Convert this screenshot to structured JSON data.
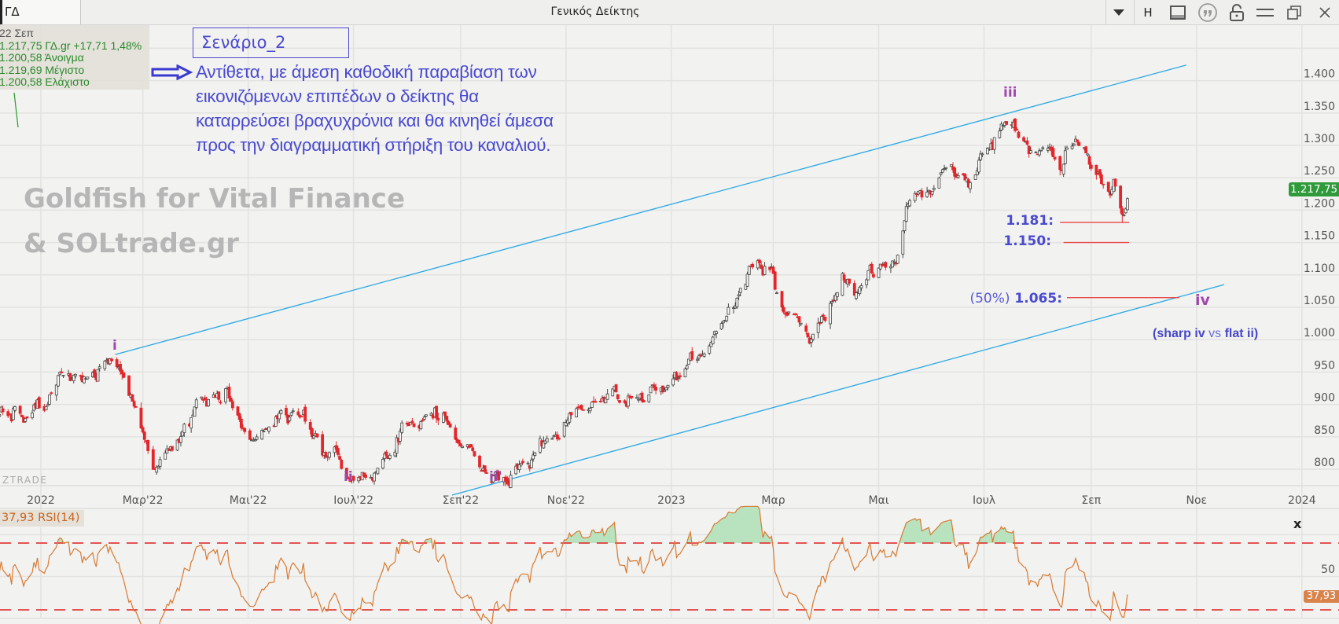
{
  "window": {
    "tab_label": "ΓΔ",
    "title": "Γενικός Δείκτης",
    "buttons": {
      "dropdown": "dropdown",
      "h_label": "H"
    }
  },
  "info": {
    "date": "22 Σεπ",
    "last": "1.217,75 ΓΔ.gr +17,71 1,48%",
    "open": "1.200,58 Άνοιγμα",
    "high": "1.219,69 Μέγιστο",
    "low": "1.200,58 Ελάχιστο"
  },
  "annotation": {
    "scenario_title": "Σενάριο_2",
    "lines": [
      "Αντίθετα, με άμεση καθοδική παραβίαση των",
      "εικονιζόμενων επιπέδων ο δείκτης θα",
      "καταρρεύσει βραχυχρόνια και θα κινηθεί άμεσα",
      "προς την διαγραμματική στήριξη του καναλιού."
    ],
    "levels": {
      "l1": "1.181:",
      "l2": "1.150:",
      "l3_prefix": "(50%)",
      "l3": "1.065:"
    },
    "waves": {
      "i": "i",
      "ii": "ii",
      "ii_alt": "ii'",
      "iii": "iii",
      "iv": "iv"
    },
    "note": {
      "open": "(sharp ",
      "iv": "iv",
      "vs": " vs ",
      "flat": "flat ii",
      "close": ")"
    }
  },
  "watermark": {
    "line1": "Goldfish for Vital Finance",
    "line2": "& SOLtrade.gr",
    "brand": "ZTRADE"
  },
  "price_tag": "1.217,75",
  "rsi_panel": {
    "header": "37,93 RSI(14)",
    "value_tag": "37,93",
    "mid_label": "50",
    "close_label": "x"
  },
  "colors": {
    "up_fill": "#f6f6f4",
    "up_stroke": "#444444",
    "down": "#e3262b",
    "channel": "#29a8e8",
    "level": "#e84646",
    "rsi": "#d87a32",
    "rsi_fill": "#b9e2bf",
    "rsi_band": "#e02020"
  },
  "chart_data": {
    "type": "candlestick",
    "title": "Γενικός Δείκτης",
    "x_origin_date": "2022-01-01",
    "x_ticks": [
      {
        "day": 0,
        "label": "2022"
      },
      {
        "day": 59,
        "label": "Μαρ'22"
      },
      {
        "day": 120,
        "label": "Μαι'22"
      },
      {
        "day": 181,
        "label": "Ιουλ'22"
      },
      {
        "day": 243,
        "label": "Σεπ'22"
      },
      {
        "day": 304,
        "label": "Νοε'22"
      },
      {
        "day": 365,
        "label": "2023"
      },
      {
        "day": 424,
        "label": "Μαρ"
      },
      {
        "day": 485,
        "label": "Μαι"
      },
      {
        "day": 546,
        "label": "Ιουλ"
      },
      {
        "day": 608,
        "label": "Σεπ"
      },
      {
        "day": 669,
        "label": "Νοε"
      },
      {
        "day": 730,
        "label": "2024"
      }
    ],
    "x_range_days": [
      -24,
      744
    ],
    "y_ticks": [
      {
        "value": 1400,
        "label": "1.400"
      },
      {
        "value": 1350,
        "label": "1.350"
      },
      {
        "value": 1300,
        "label": "1.300"
      },
      {
        "value": 1250,
        "label": "1.250"
      },
      {
        "value": 1200,
        "label": "1.200"
      },
      {
        "value": 1150,
        "label": "1.150"
      },
      {
        "value": 1100,
        "label": "1.100"
      },
      {
        "value": 1050,
        "label": "1.050"
      },
      {
        "value": 1000,
        "label": "1.000"
      },
      {
        "value": 950,
        "label": "950"
      },
      {
        "value": 900,
        "label": "900"
      },
      {
        "value": 850,
        "label": "850"
      },
      {
        "value": 800,
        "label": "800"
      }
    ],
    "y_range": [
      775,
      1470
    ],
    "close_path": [
      [
        -24,
        880
      ],
      [
        0,
        886
      ],
      [
        11,
        939
      ],
      [
        26,
        932
      ],
      [
        43,
        968
      ],
      [
        50,
        939
      ],
      [
        58,
        866
      ],
      [
        65,
        787
      ],
      [
        75,
        840
      ],
      [
        90,
        893
      ],
      [
        107,
        932
      ],
      [
        120,
        853
      ],
      [
        134,
        860
      ],
      [
        147,
        886
      ],
      [
        154,
        880
      ],
      [
        162,
        813
      ],
      [
        172,
        826
      ],
      [
        179,
        774
      ],
      [
        194,
        800
      ],
      [
        209,
        860
      ],
      [
        226,
        886
      ],
      [
        233,
        880
      ],
      [
        241,
        840
      ],
      [
        253,
        820
      ],
      [
        265,
        780
      ],
      [
        278,
        807
      ],
      [
        293,
        853
      ],
      [
        312,
        893
      ],
      [
        332,
        906
      ],
      [
        347,
        913
      ],
      [
        362,
        919
      ],
      [
        372,
        959
      ],
      [
        387,
        999
      ],
      [
        401,
        1065
      ],
      [
        411,
        1105
      ],
      [
        421,
        1125
      ],
      [
        429,
        1058
      ],
      [
        441,
        1012
      ],
      [
        448,
        1005
      ],
      [
        458,
        1058
      ],
      [
        466,
        1098
      ],
      [
        476,
        1078
      ],
      [
        485,
        1118
      ],
      [
        495,
        1124
      ],
      [
        500,
        1204
      ],
      [
        510,
        1230
      ],
      [
        520,
        1257
      ],
      [
        532,
        1257
      ],
      [
        537,
        1237
      ],
      [
        545,
        1277
      ],
      [
        555,
        1323
      ],
      [
        565,
        1340
      ],
      [
        572,
        1303
      ],
      [
        582,
        1303
      ],
      [
        589,
        1264
      ],
      [
        597,
        1297
      ],
      [
        603,
        1310
      ],
      [
        609,
        1270
      ],
      [
        616,
        1237
      ],
      [
        621,
        1244
      ],
      [
        626,
        1190
      ],
      [
        628,
        1200
      ]
    ],
    "last_candle": {
      "day": 629,
      "open": 1200.58,
      "high": 1219.69,
      "low": 1200.58,
      "close": 1217.75,
      "change": 17.71,
      "change_pct": 1.48
    },
    "trendlines": [
      {
        "name": "channel-upper",
        "from": [
          43,
          977
        ],
        "to": [
          663,
          1424
        ]
      },
      {
        "name": "channel-lower",
        "from": [
          238,
          760
        ],
        "to": [
          685,
          1085
        ]
      }
    ],
    "levels": [
      {
        "value": 1181,
        "from_day": 590,
        "to_day": 630
      },
      {
        "value": 1150,
        "from_day": 592,
        "to_day": 630
      },
      {
        "value": 1065,
        "from_day": 594,
        "to_day": 659
      }
    ],
    "rsi": {
      "period": 14,
      "last": 37.93,
      "upper": 70,
      "lower": 30,
      "ylim": [
        22,
        88
      ],
      "grid": [
        25,
        50,
        75
      ]
    }
  }
}
